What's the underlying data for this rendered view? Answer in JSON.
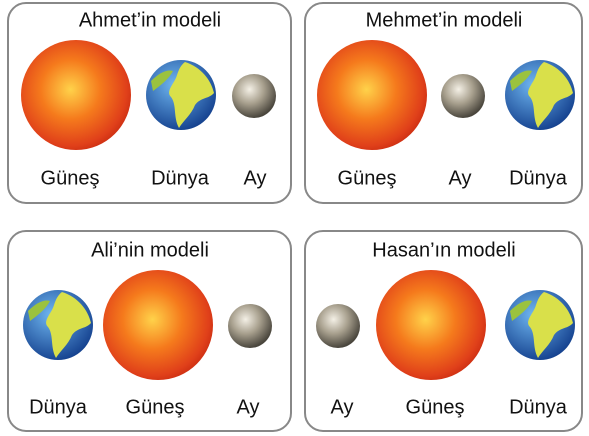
{
  "panels": [
    {
      "title": "Ahmet’in modeli",
      "labels": [
        "Güneş",
        "Dünya",
        "Ay"
      ]
    },
    {
      "title": "Mehmet’in modeli",
      "labels": [
        "Güneş",
        "Ay",
        "Dünya"
      ]
    },
    {
      "title": "Ali’nin modeli",
      "labels": [
        "Dünya",
        "Güneş",
        "Ay"
      ]
    },
    {
      "title": "Hasan’ın modeli",
      "labels": [
        "Ay",
        "Güneş",
        "Dünya"
      ]
    }
  ]
}
